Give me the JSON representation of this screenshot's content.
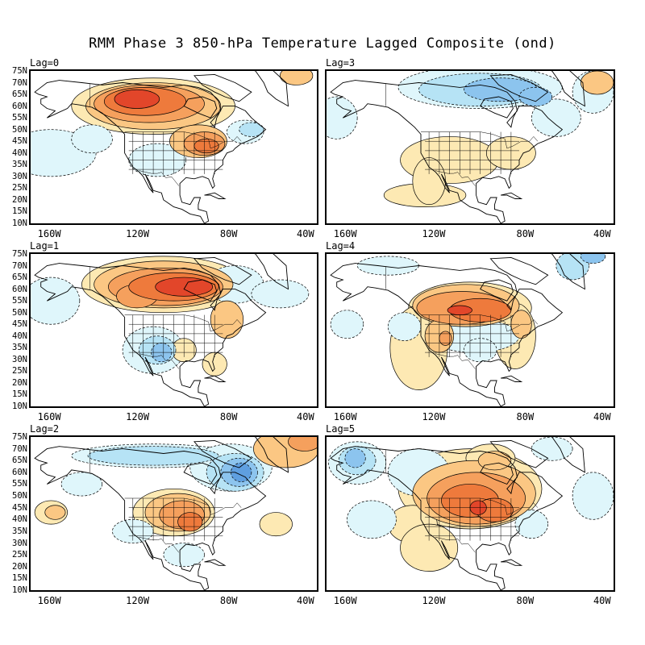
{
  "title": "RMM Phase 3 850-hPa Temperature Lagged Composite (ond)",
  "lat_labels": [
    "75N",
    "70N",
    "65N",
    "60N",
    "55N",
    "50N",
    "45N",
    "40N",
    "35N",
    "30N",
    "25N",
    "20N",
    "15N",
    "10N"
  ],
  "lon_labels": [
    "160W",
    "120W",
    "80W",
    "40W"
  ],
  "colors": {
    "warm_1": "#fde9b3",
    "warm_2": "#fbc783",
    "warm_3": "#f5a05d",
    "warm_4": "#ee7a3c",
    "warm_5": "#e2462a",
    "cool_1": "#dff6fb",
    "cool_2": "#b6e3f5",
    "cool_3": "#8cc4ee",
    "cool_4": "#5f9fe0",
    "land_line": "#000000"
  },
  "panels": [
    {
      "label": "Lag=0"
    },
    {
      "label": "Lag=3"
    },
    {
      "label": "Lag=1"
    },
    {
      "label": "Lag=4"
    },
    {
      "label": "Lag=2"
    },
    {
      "label": "Lag=5"
    }
  ]
}
